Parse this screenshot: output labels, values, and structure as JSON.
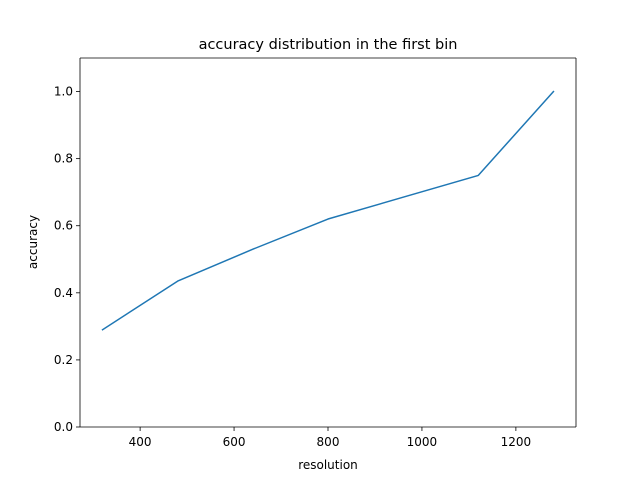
{
  "chart_data": {
    "type": "line",
    "title": "accuracy distribution in the first bin",
    "xlabel": "resolution",
    "ylabel": "accuracy",
    "xlim": [
      272,
      1328
    ],
    "ylim": [
      0.0,
      1.1
    ],
    "xticks": [
      400,
      600,
      800,
      1000,
      1200
    ],
    "yticks": [
      0.0,
      0.2,
      0.4,
      0.6,
      0.8,
      1.0
    ],
    "xtick_labels": [
      "400",
      "600",
      "800",
      "1000",
      "1200"
    ],
    "ytick_labels": [
      "0.0",
      "0.2",
      "0.4",
      "0.6",
      "0.8",
      "1.0"
    ],
    "grid": false,
    "series": [
      {
        "name": "accuracy",
        "color": "#1f77b4",
        "x": [
          320,
          480,
          640,
          800,
          960,
          1120,
          1280
        ],
        "y": [
          0.29,
          0.435,
          0.53,
          0.62,
          0.685,
          0.75,
          1.0
        ]
      }
    ]
  }
}
